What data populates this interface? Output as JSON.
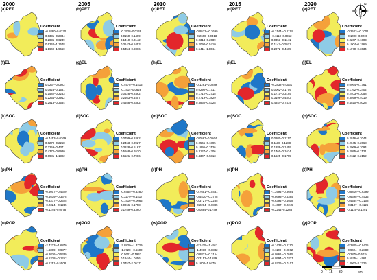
{
  "years": [
    "2000",
    "2005",
    "2010",
    "2015",
    "2020"
  ],
  "legend_title": "Coefficient",
  "colors": [
    "#1f77c8",
    "#8ecbe6",
    "#f2ec5a",
    "#f5a13a",
    "#e3262b"
  ],
  "scale": {
    "labels": [
      "0",
      "15",
      "30"
    ],
    "unit": "km"
  },
  "north_label": "N",
  "rows": [
    {
      "name": "PET",
      "panels": [
        {
          "label": "(a)PET",
          "ranges": [
            "-0.5880–0.0330",
            "0.0331–0.2834",
            "0.2835–0.6239",
            "0.6240–1.1648",
            "1.1649–1.9660"
          ]
        },
        {
          "label": "(b)PET",
          "ranges": [
            "-0.3528–0.0149",
            "0.0150–0.1409",
            "0.1410–0.3142",
            "0.3143–0.5453",
            "0.5454–0.9866"
          ]
        },
        {
          "label": "(c)PET",
          "ranges": [
            "-0.9573–-0.2699",
            "-0.2698–0.0313",
            "0.0314–0.2089",
            "0.2090–0.5410",
            "0.5411–1.0044"
          ]
        },
        {
          "label": "(d)PET",
          "ranges": [
            "-0.3144–-0.1114",
            "-0.1113–0.0352",
            "0.0353–0.1141",
            "0.1142–0.2071",
            "0.2072–0.4665"
          ]
        },
        {
          "label": "(e)PET",
          "ranges": [
            "-0.2522–-0.1001",
            "-0.1000–0.0206",
            "0.0207–0.1003",
            "0.1004–0.1969",
            "0.1970–0.3634"
          ]
        }
      ]
    },
    {
      "name": "EL",
      "panels": [
        {
          "label": "(f)EL",
          "ranges": [
            "0.0237–0.0922",
            "0.0923–0.1581",
            "0.1582–0.2253",
            "0.2254–0.2912",
            "0.2913–0.3584"
          ]
        },
        {
          "label": "(g)EL",
          "ranges": [
            "-0.4978–-0.1415",
            "-0.1414–0.0628",
            "0.0628–0.2462",
            "0.2463–0.4557",
            "0.4558–0.8382"
          ]
        },
        {
          "label": "(h)EL",
          "ranges": [
            "-0.1261–0.0289",
            "0.0290–0.1711",
            "0.1712–0.2718",
            "0.2719–0.3829",
            "0.3830–0.5328"
          ]
        },
        {
          "label": "(i)EL",
          "ranges": [
            "-0.2832–0.0061",
            "0.0062–0.1709",
            "0.1710–0.3195",
            "0.3196–0.4843",
            "0.4844–0.7414"
          ]
        },
        {
          "label": "(j)EL",
          "ranges": [
            "0.0964–0.1761",
            "0.1762–0.2402",
            "0.2403–0.3058",
            "0.3059–0.4019",
            "0.4020–0.5028"
          ]
        }
      ]
    },
    {
      "name": "SOC",
      "panels": [
        {
          "label": "(k)SOC",
          "ranges": [
            "-0.4453–0.0269",
            "0.0270–0.2258",
            "0.2259–0.4371",
            "0.4372–0.6980",
            "0.6981–1.1392"
          ]
        },
        {
          "label": "(l)SOC",
          "ranges": [
            "0.0799–0.2462",
            "0.2463–0.3927",
            "0.3928–0.5167",
            "0.5168–0.6520",
            "0.6521–0.7986"
          ]
        },
        {
          "label": "(m)SOC",
          "ranges": [
            "-0.0567–0.0564",
            "0.0565–0.1895",
            "0.1896–0.3126",
            "0.3127–0.4306",
            "0.4307–0.5813"
          ]
        },
        {
          "label": "(n)SOC",
          "ranges": [
            "0.0980–0.1117",
            "0.1118–0.1288",
            "0.1289–0.1459",
            "0.1460–0.1624",
            "0.1625–0.1795"
          ]
        },
        {
          "label": "(o)SOC",
          "ranges": [
            "0.2016–0.2044",
            "0.2045–0.2068",
            "0.2069–0.2094",
            "0.2095–0.2121",
            "0.2122–0.2152"
          ]
        }
      ]
    },
    {
      "name": "PH",
      "panels": [
        {
          "label": "(p)PH",
          "ranges": [
            "-0.6007–-0.4620",
            "-0.4619–-0.3378",
            "-0.3377–-0.2325",
            "-0.2324–-0.1245",
            "-0.1244–0.0078"
          ]
        },
        {
          "label": "(q)PH",
          "ranges": [
            "-0.6455–-0.3280",
            "-0.3279–-0.1417",
            "-0.1416–-0.0065",
            "0.0066–0.1758",
            "0.1759–0.4360"
          ]
        },
        {
          "label": "(r)PH",
          "ranges": [
            "-0.7651–-0.5431",
            "-0.5430–-0.3728",
            "-0.3727–-0.2285",
            "-0.2284–-0.0885",
            "-0.0884–0.1749"
          ]
        },
        {
          "label": "(s)PH",
          "ranges": [
            "-1.3994–-0.8694",
            "-0.8693–-0.6395",
            "-0.6394–-0.4608",
            "-0.4607–-0.2245",
            "-0.2244–0.2288"
          ]
        },
        {
          "label": "(t)PH",
          "ranges": [
            "-0.8816–-0.6399",
            "-0.6398–-0.4535",
            "-0.4534–-0.3108",
            "-0.3107–-0.1126",
            "-0.1125–0.1291"
          ]
        }
      ]
    },
    {
      "name": "POP",
      "panels": [
        {
          "label": "(u)POP",
          "ranges": [
            "-2.4213–-1.6870",
            "-1.6869–-0.9877",
            "-0.9876–-0.5339",
            "-0.5338–-0.1252",
            "-0.1251–0.5508"
          ]
        },
        {
          "label": "(v)POP",
          "ranges": [
            "-2.8820–-1.3729",
            "-1.3728–-0.5602",
            "-0.5601–0.1943",
            "0.1944–1.0456",
            "1.0457–2.0517"
          ]
        },
        {
          "label": "(w)POP",
          "ranges": [
            "-2.1415–-1.4911",
            "-1.4910–-0.8832",
            "-0.8831–-0.3154",
            "-0.3153–0.1599",
            "0.1600–1.0479"
          ]
        },
        {
          "label": "(x)POP",
          "ranges": [
            "-0.1432–-0.1110",
            "-0.1109–-0.0862",
            "-0.0861–-0.0595",
            "-0.0594–-0.0327",
            "-0.0326–-0.0107"
          ]
        },
        {
          "label": "(y)POP",
          "ranges": [
            "-2.2805–-0.9425",
            "-0.9424–-0.2880",
            "-0.2879–0.5034",
            "0.5035–1.4961",
            "1.4962–3.2226"
          ]
        }
      ]
    }
  ]
}
